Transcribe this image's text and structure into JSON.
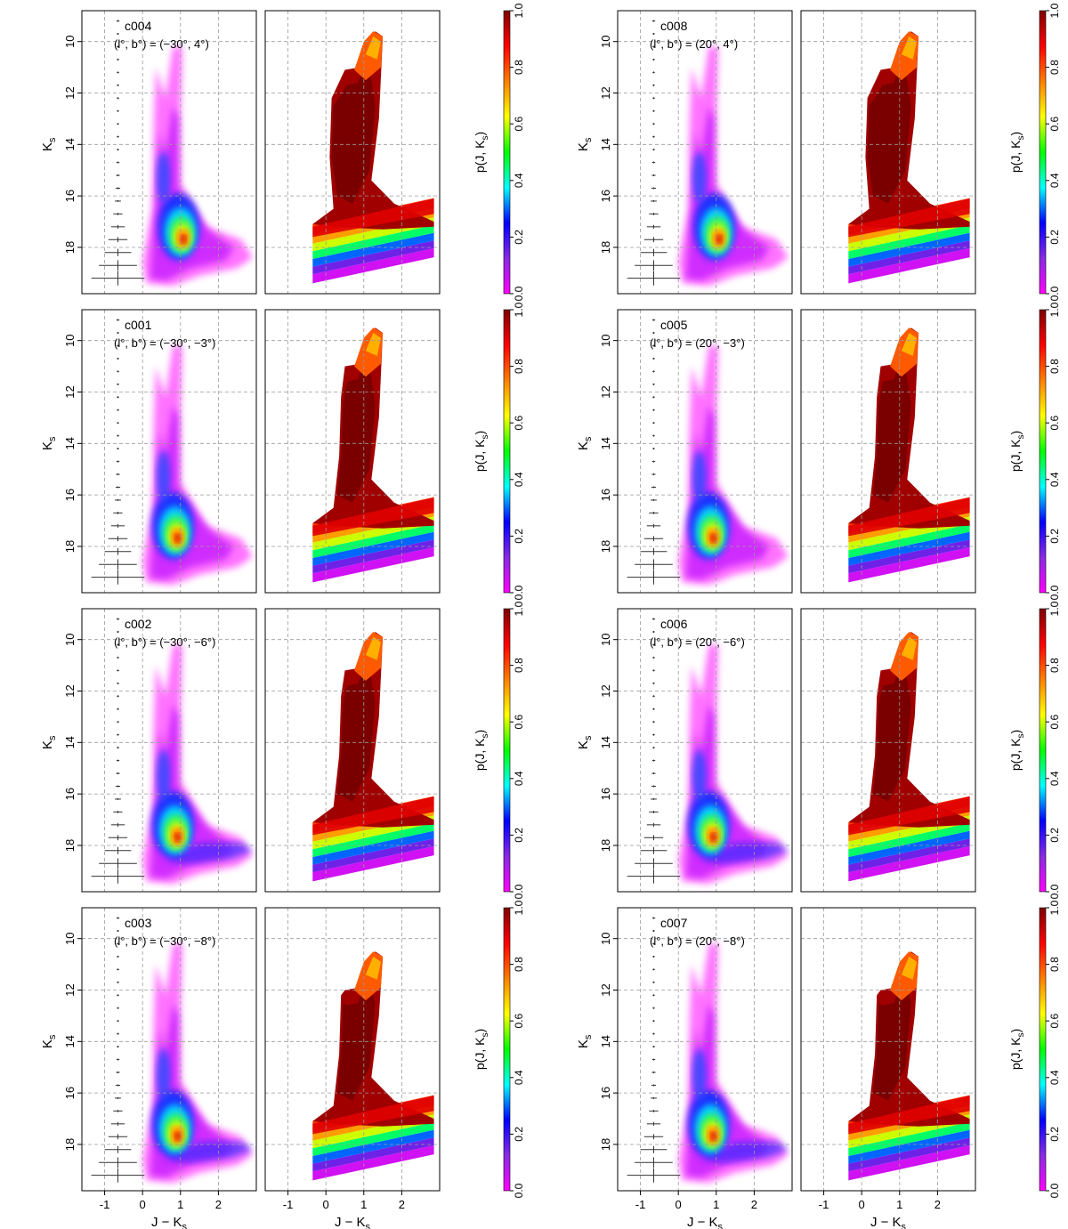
{
  "figure": {
    "panel_rows": [
      {
        "left": {
          "field": "c004",
          "coords": "(l°, b°) = (−30°, 4°)"
        },
        "right": {
          "field": "c008",
          "coords": "(l°, b°) = (20°, 4°)"
        }
      },
      {
        "left": {
          "field": "c001",
          "coords": "(l°, b°) = (−30°, −3°)"
        },
        "right": {
          "field": "c005",
          "coords": "(l°, b°) = (20°, −3°)"
        }
      },
      {
        "left": {
          "field": "c002",
          "coords": "(l°, b°) = (−30°, −6°)"
        },
        "right": {
          "field": "c006",
          "coords": "(l°, b°) = (20°, −6°)"
        }
      },
      {
        "left": {
          "field": "c003",
          "coords": "(l°, b°) = (−30°, −8°)"
        },
        "right": {
          "field": "c007",
          "coords": "(l°, b°) = (20°, −8°)"
        }
      }
    ]
  },
  "chart_data": {
    "type": "heatmap",
    "description": "Near-IR colour–magnitude diagrams (density, left) and completeness probability maps (right) for eight fields",
    "xlabel": "J − Ks",
    "ylabel": "Ks",
    "colorbar_label": "p(J, Ks)",
    "xlim": [
      -1.6,
      3.0
    ],
    "ylim": [
      19.8,
      8.8
    ],
    "x_ticks": [
      -1,
      0,
      1,
      2
    ],
    "y_ticks": [
      10,
      12,
      14,
      16,
      18
    ],
    "colorbar_ticks": [
      0.0,
      0.2,
      0.4,
      0.6,
      0.8,
      1.0
    ],
    "colorbar_range": [
      0.0,
      1.0
    ],
    "colormap": [
      "#ff00ff",
      "#8a2be2",
      "#0000ff",
      "#00ffff",
      "#00ff00",
      "#ffff00",
      "#ff8000",
      "#ff0000",
      "#800000"
    ],
    "grid": true,
    "error_bars": [
      {
        "ks": 9.2,
        "dx": 0.04
      },
      {
        "ks": 9.7,
        "dx": 0.03
      },
      {
        "ks": 10.2,
        "dx": 0.03
      },
      {
        "ks": 10.7,
        "dx": 0.03
      },
      {
        "ks": 11.2,
        "dx": 0.03
      },
      {
        "ks": 11.7,
        "dx": 0.03
      },
      {
        "ks": 12.2,
        "dx": 0.03
      },
      {
        "ks": 12.7,
        "dx": 0.03
      },
      {
        "ks": 13.2,
        "dx": 0.03
      },
      {
        "ks": 13.7,
        "dx": 0.03
      },
      {
        "ks": 14.2,
        "dx": 0.03
      },
      {
        "ks": 14.7,
        "dx": 0.04
      },
      {
        "ks": 15.2,
        "dx": 0.05
      },
      {
        "ks": 15.7,
        "dx": 0.06
      },
      {
        "ks": 16.2,
        "dx": 0.08
      },
      {
        "ks": 16.7,
        "dx": 0.12
      },
      {
        "ks": 17.2,
        "dx": 0.18
      },
      {
        "ks": 17.7,
        "dx": 0.25
      },
      {
        "ks": 18.2,
        "dx": 0.35
      },
      {
        "ks": 18.7,
        "dx": 0.5
      },
      {
        "ks": 19.2,
        "dx": 0.7
      }
    ],
    "fields": [
      {
        "name": "c004",
        "l": -30,
        "b": 4
      },
      {
        "name": "c001",
        "l": -30,
        "b": -3
      },
      {
        "name": "c002",
        "l": -30,
        "b": -6
      },
      {
        "name": "c003",
        "l": -30,
        "b": -8
      },
      {
        "name": "c008",
        "l": 20,
        "b": 4
      },
      {
        "name": "c005",
        "l": 20,
        "b": -3
      },
      {
        "name": "c006",
        "l": 20,
        "b": -6
      },
      {
        "name": "c007",
        "l": 20,
        "b": -8
      }
    ]
  }
}
